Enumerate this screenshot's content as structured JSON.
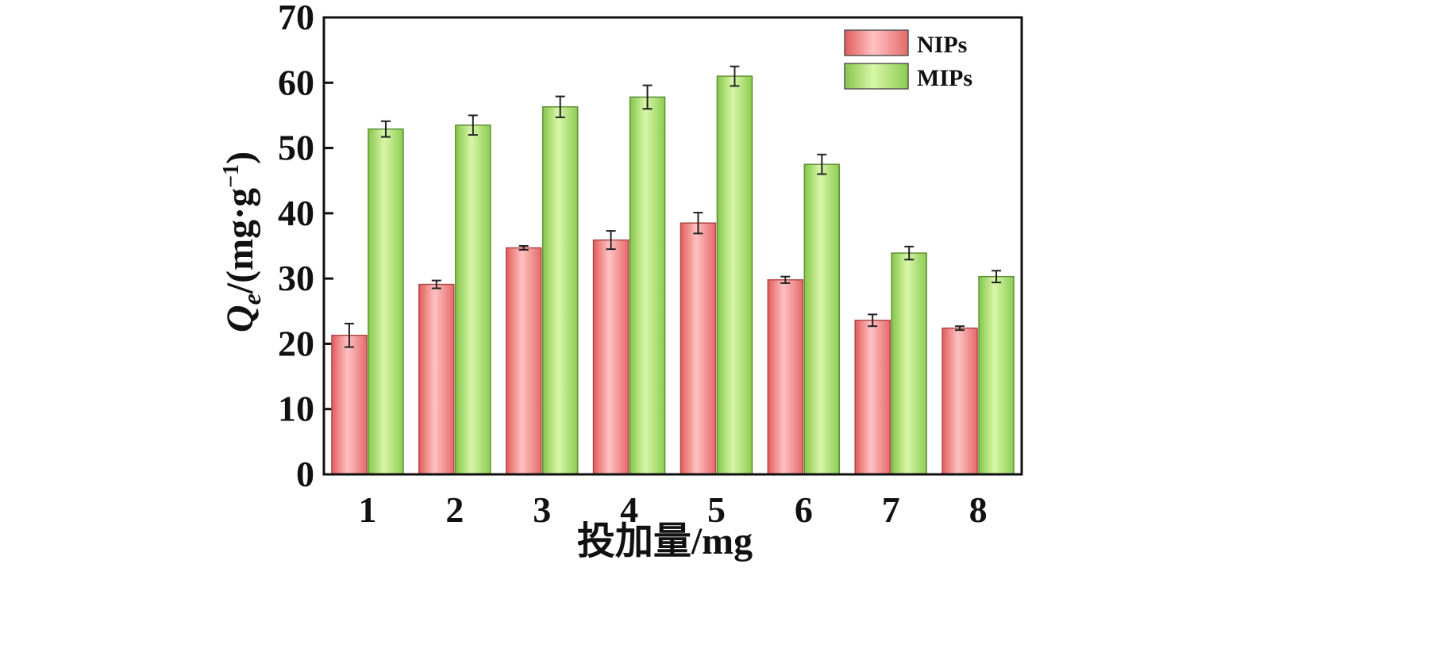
{
  "chart_data": {
    "type": "bar",
    "xlabel": "投加量/mg",
    "ylabel": "Q",
    "ylabel_subscript": "e",
    "ylabel_unit": "/(mg·g",
    "ylabel_sup": "−1",
    "ylabel_close": ")",
    "ylim": [
      0,
      70
    ],
    "yticks": [
      0,
      10,
      20,
      30,
      40,
      50,
      60,
      70
    ],
    "categories": [
      "1",
      "2",
      "3",
      "4",
      "5",
      "6",
      "7",
      "8"
    ],
    "series": [
      {
        "name": "NIPs",
        "color": "#f08a8a",
        "values": [
          21.3,
          29.1,
          34.7,
          35.9,
          38.5,
          29.8,
          23.6,
          22.4
        ],
        "errors": [
          1.8,
          0.6,
          0.3,
          1.4,
          1.6,
          0.5,
          0.9,
          0.3
        ]
      },
      {
        "name": "MIPs",
        "color": "#a8e070",
        "values": [
          52.9,
          53.5,
          56.3,
          57.8,
          61.0,
          47.5,
          33.9,
          30.3
        ],
        "errors": [
          1.2,
          1.5,
          1.6,
          1.8,
          1.5,
          1.5,
          1.0,
          0.9
        ]
      }
    ],
    "legend_position": "top-right",
    "grid": false
  }
}
